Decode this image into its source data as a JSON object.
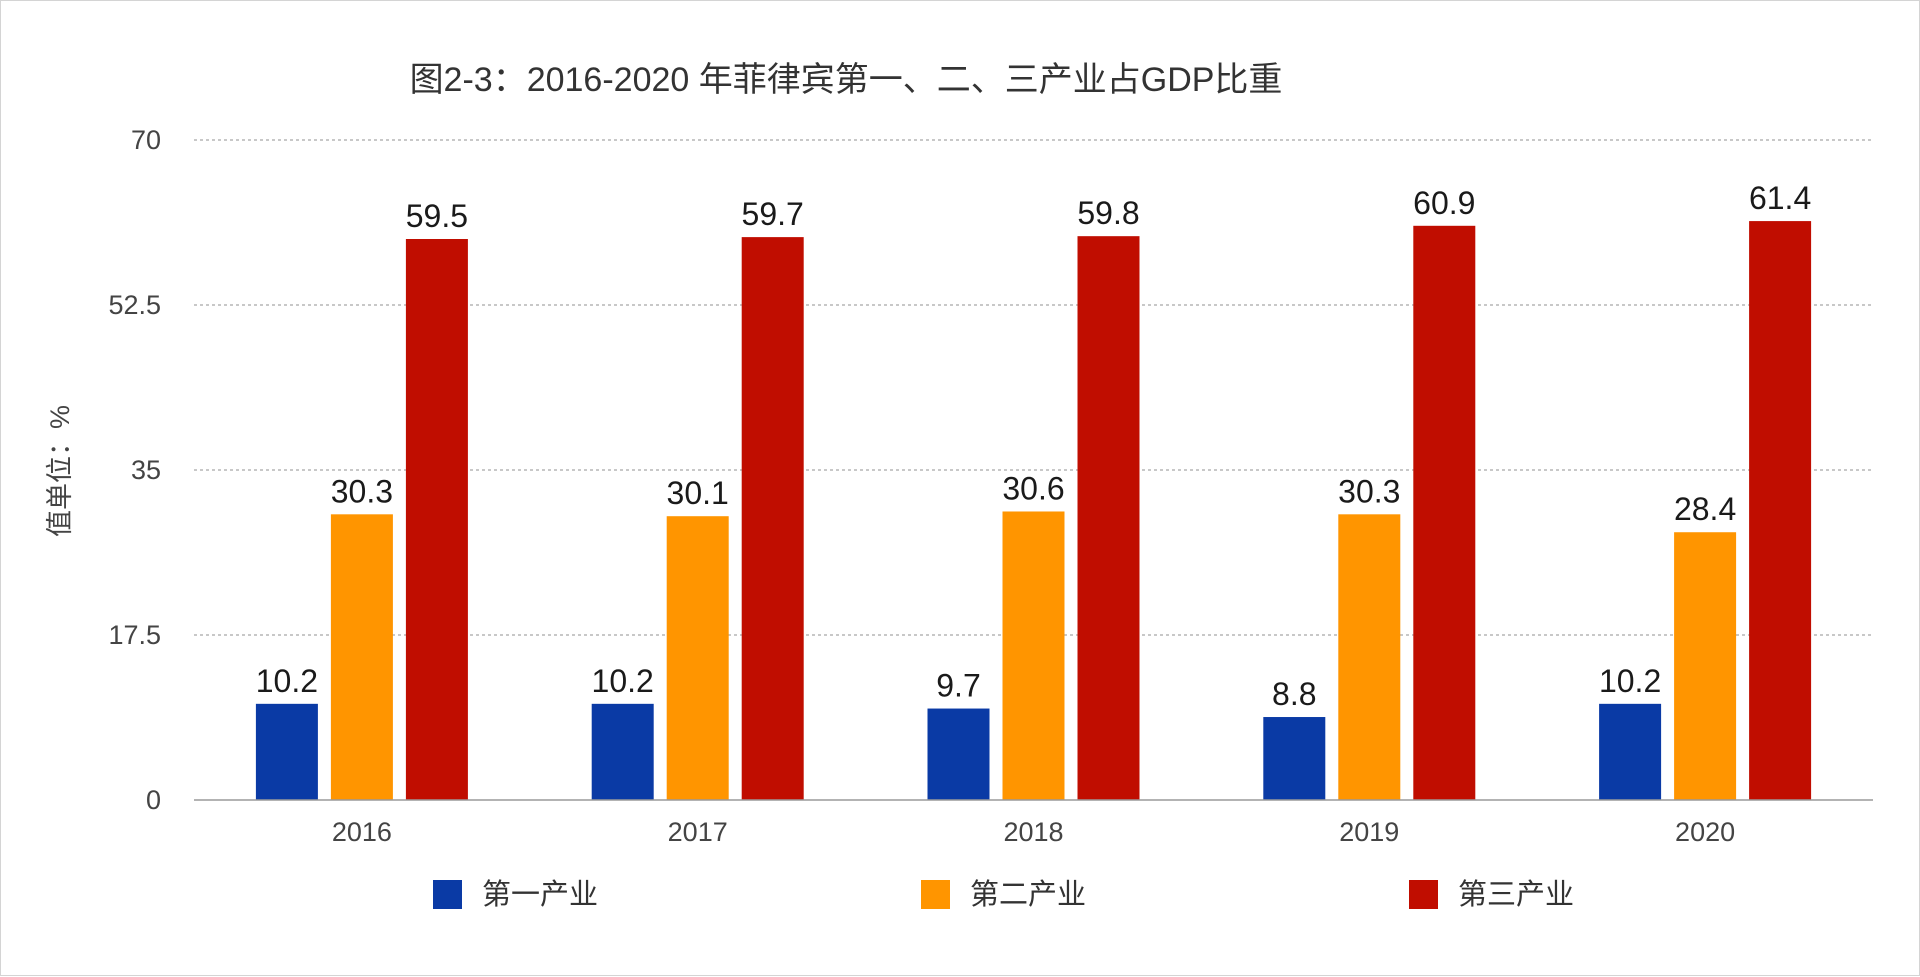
{
  "chart_data": {
    "type": "bar",
    "title": "图2-3：2016-2020 年菲律宾第一、二、三产业占GDP比重",
    "ylabel": "值单位：%",
    "xlabel": "",
    "categories": [
      "2016",
      "2017",
      "2018",
      "2019",
      "2020"
    ],
    "series": [
      {
        "name": "第一产业",
        "color": "#0a3aa5",
        "values": [
          10.2,
          10.2,
          9.7,
          8.8,
          10.2
        ]
      },
      {
        "name": "第二产业",
        "color": "#ff9500",
        "values": [
          30.3,
          30.1,
          30.6,
          30.3,
          28.4
        ]
      },
      {
        "name": "第三产业",
        "color": "#c00d00",
        "values": [
          59.5,
          59.7,
          59.8,
          60.9,
          61.4
        ]
      }
    ],
    "ylim": [
      0,
      70
    ],
    "yticks": [
      "0",
      "17.5",
      "35",
      "52.5",
      "70"
    ],
    "grid": true,
    "legend_position": "bottom",
    "data_labels": true
  }
}
